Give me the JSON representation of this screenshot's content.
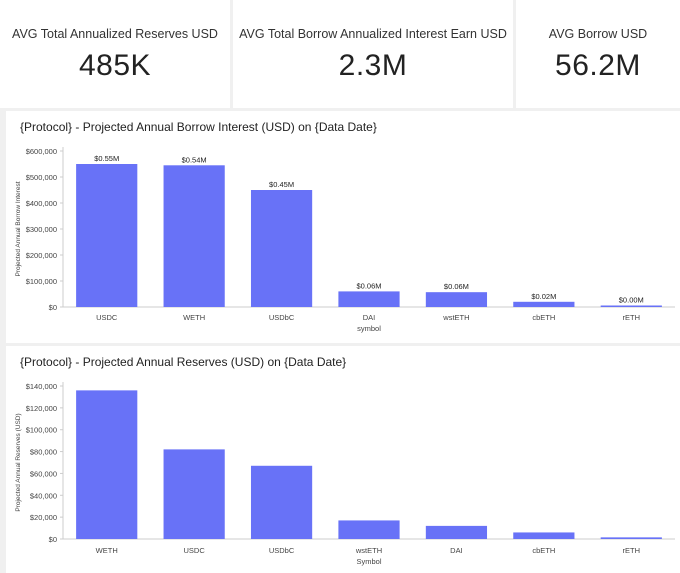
{
  "kpis": [
    {
      "label": "AVG Total Annualized Reserves USD",
      "value": "485K"
    },
    {
      "label": "AVG Total Borrow Annualized Interest Earn USD",
      "value": "2.3M"
    },
    {
      "label": "AVG Borrow USD",
      "value": "56.2M"
    }
  ],
  "colors": {
    "bar": "#6872f7",
    "axis": "#cccccc",
    "text": "#444444"
  },
  "chart_data": [
    {
      "type": "bar",
      "title": "{Protocol} - Projected Annual Borrow Interest (USD) on {Data Date}",
      "xlabel": "symbol",
      "ylabel": "Projected Annual Borrow Interest",
      "categories": [
        "USDC",
        "WETH",
        "USDbC",
        "DAI",
        "wstETH",
        "cbETH",
        "rETH"
      ],
      "values": [
        550000,
        545000,
        450000,
        60000,
        57000,
        20000,
        4000
      ],
      "data_labels": [
        "$0.55M",
        "$0.54M",
        "$0.45M",
        "$0.06M",
        "$0.06M",
        "$0.02M",
        "$0.00M"
      ],
      "ylim": [
        0,
        600000
      ],
      "yticks": [
        0,
        100000,
        200000,
        300000,
        400000,
        500000,
        600000
      ],
      "ytick_labels": [
        "$0",
        "$100,000",
        "$200,000",
        "$300,000",
        "$400,000",
        "$500,000",
        "$600,000"
      ]
    },
    {
      "type": "bar",
      "title": "{Protocol} - Projected Annual Reserves (USD) on {Data Date}",
      "xlabel": "Symbol",
      "ylabel": "Projected Annual Reserves (USD)",
      "categories": [
        "WETH",
        "USDC",
        "USDbC",
        "wstETH",
        "DAI",
        "cbETH",
        "rETH"
      ],
      "values": [
        136000,
        82000,
        67000,
        17000,
        12000,
        6000,
        1500
      ],
      "ylim": [
        0,
        140000
      ],
      "yticks": [
        0,
        20000,
        40000,
        60000,
        80000,
        100000,
        120000,
        140000
      ],
      "ytick_labels": [
        "$0",
        "$20,000",
        "$40,000",
        "$60,000",
        "$80,000",
        "$100,000",
        "$120,000",
        "$140,000"
      ]
    }
  ]
}
